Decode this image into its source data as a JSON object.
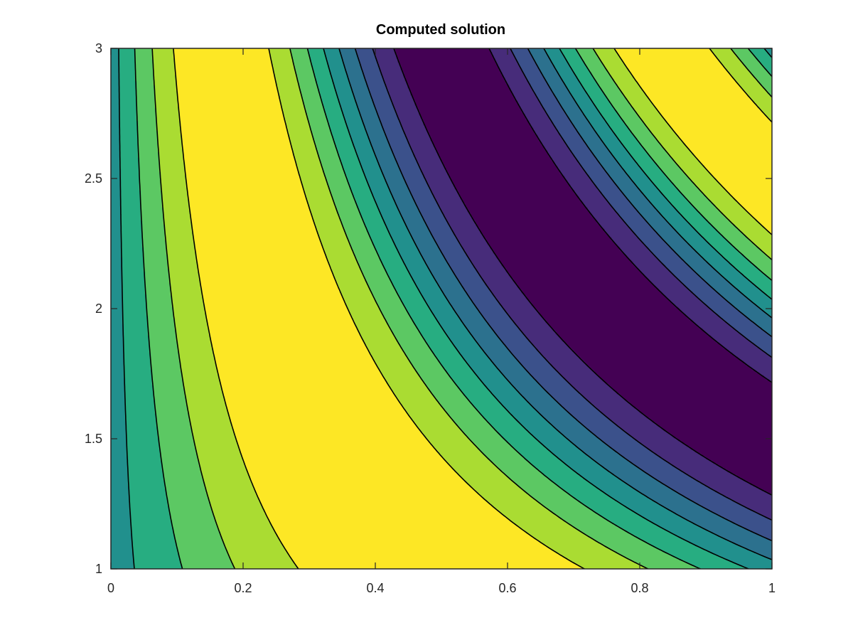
{
  "chart_data": {
    "type": "filled-contour",
    "title": "Computed solution",
    "xlabel": "",
    "ylabel": "",
    "xlim": [
      0,
      1
    ],
    "ylim": [
      1,
      3
    ],
    "x_ticks": [
      "0",
      "0.2",
      "0.4",
      "0.6",
      "0.8",
      "1"
    ],
    "y_ticks": [
      "1",
      "1.5",
      "2",
      "2.5",
      "3"
    ],
    "x_tick_values": [
      0,
      0.2,
      0.4,
      0.6,
      0.8,
      1
    ],
    "y_tick_values": [
      1,
      1.5,
      2,
      2.5,
      3
    ],
    "grid": false,
    "colormap": "parula",
    "level_count": 9,
    "level_colors": [
      "#440154",
      "#472c7a",
      "#3b518b",
      "#2c718e",
      "#21908d",
      "#27ad81",
      "#5cc863",
      "#aadc32",
      "#fde725"
    ],
    "field": "approximately sin(pi*x*y)",
    "contour_line_color": "#000000"
  }
}
